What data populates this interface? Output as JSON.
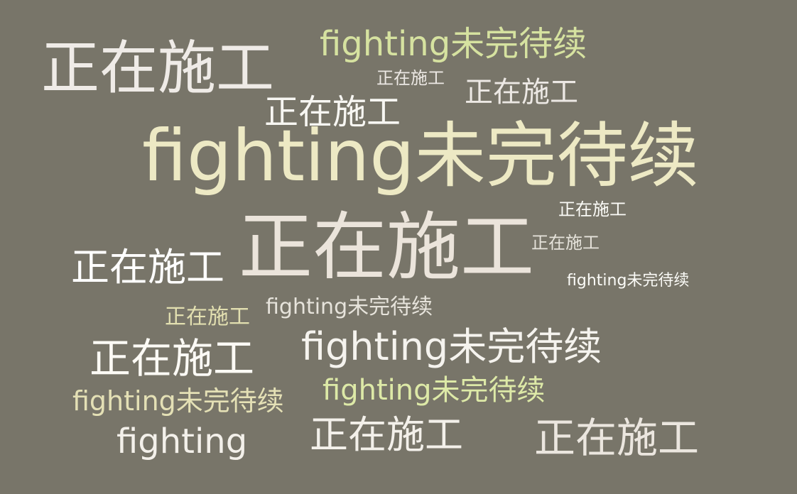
{
  "word_cloud": {
    "background": "#787569",
    "words": [
      {
        "text": "正在施工",
        "color": "#efebe7"
      },
      {
        "text": "fighting未完待续",
        "color": "#d6e2a0"
      },
      {
        "text": "正在施工",
        "color": "#ece8e4"
      },
      {
        "text": "正在施工",
        "color": "#ece8e4"
      },
      {
        "text": "正在施工",
        "color": "#f7f6f2"
      },
      {
        "text": "fighting未完待续",
        "color": "#ede9c4"
      },
      {
        "text": "正在施工",
        "color": "#fbfbf7"
      },
      {
        "text": "正在施工",
        "color": "#ebe4db"
      },
      {
        "text": "正在施工",
        "color": "#e6e3db"
      },
      {
        "text": "正在施工",
        "color": "#ffffff"
      },
      {
        "text": "fighting未完待续",
        "color": "#fbfbf7"
      },
      {
        "text": "正在施工",
        "color": "#e2dfb0"
      },
      {
        "text": "fighting未完待续",
        "color": "#e6e3db"
      },
      {
        "text": "正在施工",
        "color": "#fcfaf5"
      },
      {
        "text": "fighting未完待续",
        "color": "#f5f3ee"
      },
      {
        "text": "fighting未完待续",
        "color": "#e4e0b5"
      },
      {
        "text": "fighting未完待续",
        "color": "#dde9a7"
      },
      {
        "text": "fighting",
        "color": "#f3f0ea"
      },
      {
        "text": "正在施工",
        "color": "#f3f0ea"
      },
      {
        "text": "正在施工",
        "color": "#ebe6df"
      }
    ]
  }
}
